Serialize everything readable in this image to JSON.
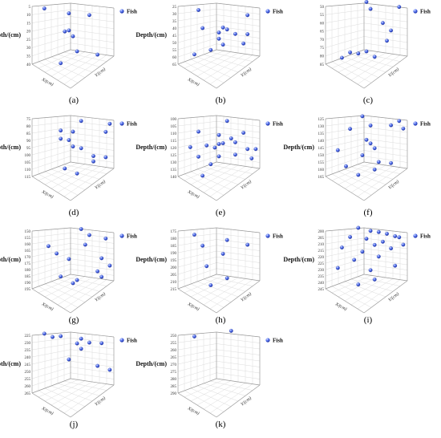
{
  "colors": {
    "marker": "#3a55d8",
    "marker_highlight": "#d6dcff",
    "grid": "#dcdcdc",
    "axis": "#9a9a9a"
  },
  "chart_data": [
    {
      "type": "scatter",
      "panel": "(a)",
      "zlabel": "Depth/(cm)",
      "xlabel": "X/(cm)",
      "ylabel": "Y/(cm)",
      "legend": "Fish",
      "zticks": [
        "5",
        "10",
        "15",
        "20",
        "25",
        "30",
        "35",
        "40"
      ],
      "zlim": [
        5,
        40
      ],
      "points": [
        [
          0.15,
          0.75,
          8
        ],
        [
          0.45,
          0.6,
          10
        ],
        [
          0.7,
          0.3,
          9
        ],
        [
          0.45,
          0.65,
          21
        ],
        [
          0.5,
          0.7,
          25
        ],
        [
          0.4,
          0.7,
          22
        ],
        [
          0.55,
          0.5,
          33
        ],
        [
          0.8,
          0.35,
          34
        ],
        [
          0.35,
          0.3,
          39
        ]
      ]
    },
    {
      "type": "scatter",
      "panel": "(b)",
      "zlabel": "Depth/(cm)",
      "xlabel": "X/(cm)",
      "ylabel": "Y/(cm)",
      "legend": "Fish",
      "zticks": [
        "25",
        "30",
        "35",
        "40",
        "45",
        "50",
        "55",
        "60",
        "65"
      ],
      "zlim": [
        25,
        65
      ],
      "points": [
        [
          0.25,
          0.8,
          30
        ],
        [
          0.85,
          0.1,
          28
        ],
        [
          0.55,
          0.5,
          40
        ],
        [
          0.6,
          0.45,
          41
        ],
        [
          0.3,
          0.7,
          42
        ],
        [
          0.7,
          0.3,
          43
        ],
        [
          0.5,
          0.55,
          44
        ],
        [
          0.85,
          0.4,
          44
        ],
        [
          0.5,
          0.5,
          48
        ],
        [
          0.8,
          0.2,
          49
        ],
        [
          0.55,
          0.6,
          53
        ],
        [
          0.4,
          0.5,
          56
        ],
        [
          0.2,
          0.6,
          60
        ]
      ]
    },
    {
      "type": "scatter",
      "panel": "(c)",
      "zlabel": "",
      "xlabel": "",
      "ylabel": "Y/(cm)",
      "legend": "Fish",
      "zticks": [
        "50",
        "55",
        "60",
        "65",
        "70",
        "75",
        "80",
        "85"
      ],
      "zlim": [
        50,
        85
      ],
      "points": [
        [
          0.5,
          0.9,
          50
        ],
        [
          0.9,
          0.6,
          51
        ],
        [
          0.55,
          0.85,
          54
        ],
        [
          0.7,
          0.6,
          61
        ],
        [
          0.8,
          0.5,
          65
        ],
        [
          0.75,
          0.3,
          70
        ],
        [
          0.5,
          0.5,
          78
        ],
        [
          0.3,
          0.55,
          79
        ],
        [
          0.4,
          0.45,
          79
        ],
        [
          0.6,
          0.3,
          80
        ],
        [
          0.2,
          0.5,
          82
        ]
      ]
    },
    {
      "type": "scatter",
      "panel": "(d)",
      "zlabel": "Depth/(cm)",
      "xlabel": "X/(cm)",
      "ylabel": "Y/(cm)",
      "legend": "Fish",
      "zticks": [
        "75",
        "80",
        "85",
        "90",
        "95",
        "100",
        "105",
        "110",
        "115"
      ],
      "zlim": [
        75,
        115
      ],
      "points": [
        [
          0.95,
          0.3,
          77
        ],
        [
          0.6,
          0.8,
          79
        ],
        [
          0.9,
          0.2,
          82
        ],
        [
          0.35,
          0.7,
          85
        ],
        [
          0.5,
          0.6,
          85
        ],
        [
          0.35,
          0.6,
          90
        ],
        [
          0.45,
          0.6,
          91
        ],
        [
          0.5,
          0.4,
          94
        ],
        [
          0.6,
          0.5,
          96
        ],
        [
          0.75,
          0.3,
          100
        ],
        [
          0.9,
          0.2,
          100
        ],
        [
          0.75,
          0.45,
          105
        ],
        [
          0.4,
          0.45,
          110
        ],
        [
          0.55,
          0.25,
          112
        ]
      ]
    },
    {
      "type": "scatter",
      "panel": "(e)",
      "zlabel": "Depth/(cm)",
      "xlabel": "X/(cm)",
      "ylabel": "Y/(cm)",
      "legend": "Fish",
      "zticks": [
        "100",
        "105",
        "110",
        "115",
        "120",
        "125",
        "130",
        "135",
        "140"
      ],
      "zlim": [
        100,
        140
      ],
      "points": [
        [
          0.6,
          0.8,
          104
        ],
        [
          0.25,
          0.6,
          110
        ],
        [
          0.5,
          0.55,
          112
        ],
        [
          0.8,
          0.5,
          110
        ],
        [
          0.65,
          0.5,
          114
        ],
        [
          0.55,
          0.45,
          117
        ],
        [
          0.5,
          0.5,
          118
        ],
        [
          0.7,
          0.4,
          116
        ],
        [
          0.35,
          0.5,
          119
        ],
        [
          0.15,
          0.6,
          121
        ],
        [
          0.45,
          0.55,
          121
        ],
        [
          0.85,
          0.3,
          120
        ],
        [
          0.7,
          0.3,
          124
        ],
        [
          0.95,
          0.3,
          120
        ],
        [
          0.9,
          0.1,
          125
        ],
        [
          0.25,
          0.5,
          127
        ],
        [
          0.5,
          0.4,
          126
        ],
        [
          0.4,
          0.45,
          132
        ],
        [
          0.3,
          0.3,
          139
        ]
      ]
    },
    {
      "type": "scatter",
      "panel": "(f)",
      "zlabel": "Depth/(cm)",
      "xlabel": "",
      "ylabel": "Y/(cm)",
      "legend": "Fish",
      "zticks": [
        "125",
        "130",
        "135",
        "140",
        "145",
        "150",
        "155",
        "160",
        "165"
      ],
      "zlim": [
        125,
        165
      ],
      "points": [
        [
          0.45,
          0.85,
          126
        ],
        [
          0.9,
          0.55,
          127
        ],
        [
          0.8,
          0.55,
          130
        ],
        [
          0.55,
          0.65,
          131
        ],
        [
          0.95,
          0.25,
          130
        ],
        [
          0.3,
          0.6,
          133
        ],
        [
          0.5,
          0.5,
          140
        ],
        [
          0.55,
          0.55,
          143
        ],
        [
          0.6,
          0.5,
          146
        ],
        [
          0.15,
          0.7,
          149
        ],
        [
          0.45,
          0.5,
          151
        ],
        [
          0.65,
          0.4,
          155
        ],
        [
          0.8,
          0.3,
          155
        ],
        [
          0.25,
          0.4,
          158
        ],
        [
          0.6,
          0.35,
          160
        ],
        [
          0.4,
          0.25,
          163
        ]
      ]
    },
    {
      "type": "scatter",
      "panel": "(g)",
      "zlabel": "Depth/(cm)",
      "xlabel": "X/(cm)",
      "ylabel": "Y/(cm)",
      "legend": "Fish",
      "zticks": [
        "150",
        "155",
        "160",
        "165",
        "170",
        "175",
        "180",
        "185",
        "190",
        "195"
      ],
      "zlim": [
        150,
        195
      ],
      "points": [
        [
          0.6,
          0.9,
          152
        ],
        [
          0.7,
          0.7,
          155
        ],
        [
          0.9,
          0.5,
          156
        ],
        [
          0.65,
          0.4,
          160
        ],
        [
          0.2,
          0.6,
          163
        ],
        [
          0.3,
          0.5,
          168
        ],
        [
          0.45,
          0.45,
          172
        ],
        [
          0.85,
          0.3,
          170
        ],
        [
          0.95,
          0.2,
          175
        ],
        [
          0.8,
          0.25,
          180
        ],
        [
          0.85,
          0.2,
          184
        ],
        [
          0.35,
          0.45,
          186
        ],
        [
          0.55,
          0.25,
          187
        ],
        [
          0.5,
          0.3,
          190
        ]
      ]
    },
    {
      "type": "scatter",
      "panel": "(h)",
      "zlabel": "Depth/(cm)",
      "xlabel": "X/(cm)",
      "ylabel": "Y/(cm)",
      "legend": "Fish",
      "zticks": [
        "175",
        "180",
        "185",
        "190",
        "195",
        "200",
        "205",
        "210",
        "215"
      ],
      "zlim": [
        175,
        215
      ],
      "points": [
        [
          0.2,
          0.8,
          180
        ],
        [
          0.6,
          0.7,
          183
        ],
        [
          0.85,
          0.4,
          184
        ],
        [
          0.3,
          0.7,
          187
        ],
        [
          0.55,
          0.6,
          192
        ],
        [
          0.35,
          0.5,
          200
        ],
        [
          0.6,
          0.3,
          207
        ],
        [
          0.4,
          0.3,
          212
        ]
      ]
    },
    {
      "type": "scatter",
      "panel": "(i)",
      "zlabel": "Depth/(cm)",
      "xlabel": "X/(cm)",
      "ylabel": "Y/(cm)",
      "legend": "Fish",
      "zticks": [
        "200",
        "205",
        "210",
        "215",
        "220",
        "225",
        "230",
        "235",
        "240",
        "245"
      ],
      "zlim": [
        200,
        245
      ],
      "points": [
        [
          0.4,
          0.9,
          201
        ],
        [
          0.55,
          0.85,
          203
        ],
        [
          0.65,
          0.75,
          203
        ],
        [
          0.75,
          0.7,
          204
        ],
        [
          0.85,
          0.6,
          205
        ],
        [
          0.9,
          0.5,
          205
        ],
        [
          0.3,
          0.75,
          207
        ],
        [
          0.5,
          0.7,
          208
        ],
        [
          0.7,
          0.55,
          209
        ],
        [
          0.95,
          0.4,
          210
        ],
        [
          0.6,
          0.6,
          212
        ],
        [
          0.8,
          0.4,
          213
        ],
        [
          0.2,
          0.7,
          215
        ],
        [
          0.45,
          0.55,
          217
        ],
        [
          0.65,
          0.45,
          220
        ],
        [
          0.35,
          0.6,
          224
        ],
        [
          0.85,
          0.3,
          226
        ],
        [
          0.15,
          0.55,
          230
        ],
        [
          0.55,
          0.35,
          230
        ],
        [
          0.6,
          0.3,
          237
        ],
        [
          0.4,
          0.3,
          241
        ]
      ]
    },
    {
      "type": "scatter",
      "panel": "(j)",
      "zlabel": "Depth/(cm)",
      "xlabel": "X/(cm)",
      "ylabel": "Y/(cm)",
      "legend": "Fish",
      "zticks": [
        "225",
        "230",
        "235",
        "240",
        "245",
        "250",
        "255",
        "260",
        "265"
      ],
      "zlim": [
        225,
        265
      ],
      "points": [
        [
          0.15,
          0.9,
          227
        ],
        [
          0.35,
          0.8,
          228
        ],
        [
          0.25,
          0.85,
          229
        ],
        [
          0.6,
          0.7,
          229
        ],
        [
          0.7,
          0.6,
          231
        ],
        [
          0.55,
          0.65,
          232
        ],
        [
          0.85,
          0.55,
          231
        ],
        [
          0.6,
          0.55,
          235
        ],
        [
          0.45,
          0.6,
          243
        ],
        [
          0.8,
          0.4,
          246
        ],
        [
          0.95,
          0.3,
          248
        ]
      ]
    },
    {
      "type": "scatter",
      "panel": "(k)",
      "zlabel": "Depth/(cm)",
      "xlabel": "X/(cm)",
      "ylabel": "Y/(cm)",
      "legend": "Fish",
      "zticks": [
        "250",
        "255",
        "260",
        "265",
        "270",
        "275",
        "280",
        "285",
        "290"
      ],
      "zlim": [
        250,
        290
      ],
      "points": [
        [
          0.65,
          0.9,
          250
        ],
        [
          0.2,
          0.9,
          254
        ]
      ]
    }
  ]
}
